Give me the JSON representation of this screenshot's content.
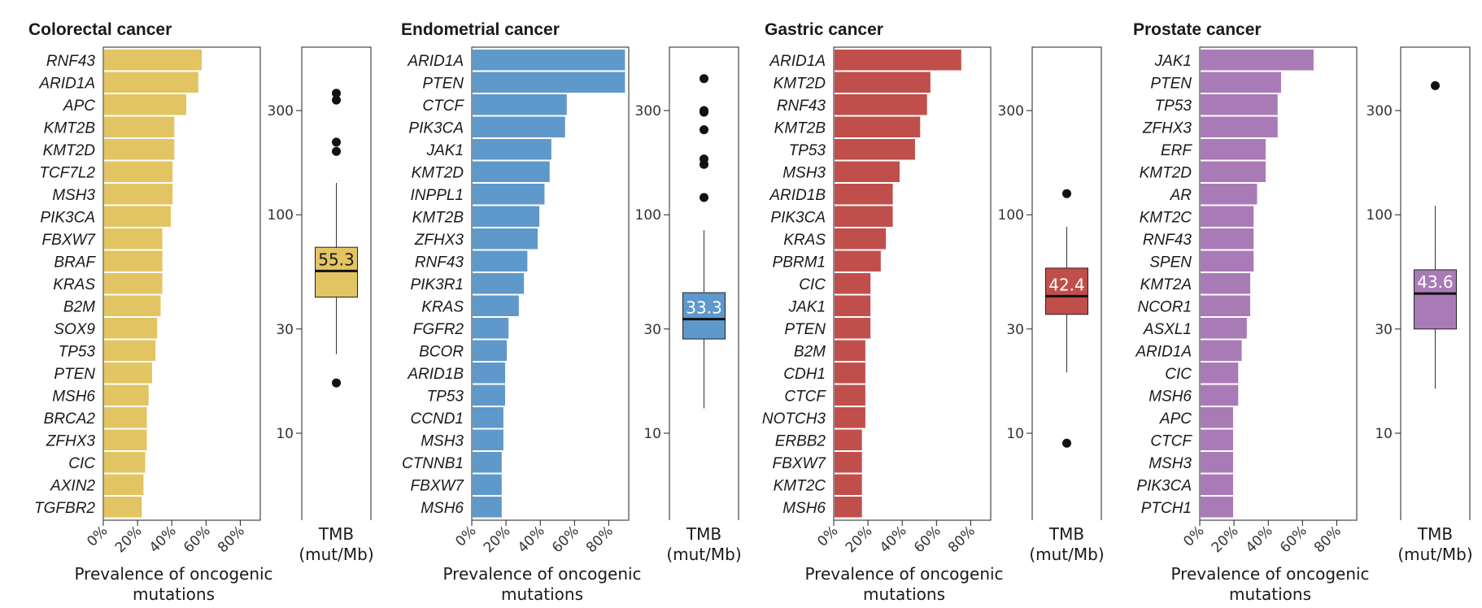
{
  "colors": {
    "Colorectal cancer": "#e3c462",
    "Endometrial cancer": "#5f98cb",
    "Gastric cancer": "#c04f4b",
    "Prostate cancer": "#a97bb6"
  },
  "chart_data": [
    {
      "type": "bar",
      "title": "Colorectal cancer",
      "xlabel": "Prevalence of oncogenic mutations",
      "xtick_labels": [
        "0%",
        "20%",
        "40%",
        "60%",
        "80%"
      ],
      "xlim": [
        0,
        95
      ],
      "categories": [
        "RNF43",
        "ARID1A",
        "APC",
        "KMT2B",
        "KMT2D",
        "TCF7L2",
        "MSH3",
        "PIK3CA",
        "FBXW7",
        "BRAF",
        "KRAS",
        "B2M",
        "SOX9",
        "TP53",
        "PTEN",
        "MSH6",
        "BRCA2",
        "ZFHX3",
        "CIC",
        "AXIN2",
        "TGFBR2"
      ],
      "values": [
        57,
        55,
        48,
        41,
        41,
        40,
        40,
        39,
        34,
        34,
        34,
        33,
        31,
        30,
        28,
        26,
        25,
        25,
        24,
        23,
        22
      ]
    },
    {
      "type": "box",
      "xlabel": "TMB\n(mut/Mb)",
      "ytick_labels": [
        "10",
        "30",
        "100",
        "300"
      ],
      "yscale": "log",
      "median": 55.3,
      "median_label": "55.3",
      "q1": 42,
      "q3": 71,
      "whisker_low": 23,
      "whisker_high": 140,
      "outliers": [
        360,
        335,
        215,
        195,
        17
      ]
    },
    {
      "type": "bar",
      "title": "Endometrial cancer",
      "xlabel": "Prevalence of oncogenic mutations",
      "xtick_labels": [
        "0%",
        "20%",
        "40%",
        "60%",
        "80%"
      ],
      "xlim": [
        0,
        95
      ],
      "categories": [
        "ARID1A",
        "PTEN",
        "CTCF",
        "PIK3CA",
        "JAK1",
        "KMT2D",
        "INPPL1",
        "KMT2B",
        "ZFHX3",
        "RNF43",
        "PIK3R1",
        "KRAS",
        "FGFR2",
        "BCOR",
        "ARID1B",
        "TP53",
        "CCND1",
        "MSH3",
        "CTNNB1",
        "FBXW7",
        "MSH6"
      ],
      "values": [
        89,
        89,
        55,
        54,
        46,
        45,
        42,
        39,
        38,
        32,
        30,
        27,
        21,
        20,
        19,
        19,
        18,
        18,
        17,
        17,
        17
      ]
    },
    {
      "type": "box",
      "xlabel": "TMB\n(mut/Mb)",
      "ytick_labels": [
        "10",
        "30",
        "100",
        "300"
      ],
      "yscale": "log",
      "median": 33.3,
      "median_label": "33.3",
      "q1": 27,
      "q3": 44,
      "whisker_low": 13,
      "whisker_high": 85,
      "outliers": [
        420,
        300,
        295,
        245,
        180,
        170,
        120
      ]
    },
    {
      "type": "bar",
      "title": "Gastric cancer",
      "xlabel": "Prevalence of oncogenic mutations",
      "xtick_labels": [
        "0%",
        "20%",
        "40%",
        "60%",
        "80%"
      ],
      "xlim": [
        0,
        95
      ],
      "categories": [
        "ARID1A",
        "KMT2D",
        "RNF43",
        "KMT2B",
        "TP53",
        "MSH3",
        "ARID1B",
        "PIK3CA",
        "KRAS",
        "PBRM1",
        "CIC",
        "JAK1",
        "PTEN",
        "B2M",
        "CDH1",
        "CTCF",
        "NOTCH3",
        "ERBB2",
        "FBXW7",
        "KMT2C",
        "MSH6"
      ],
      "values": [
        74,
        56,
        54,
        50,
        47,
        38,
        34,
        34,
        30,
        27,
        21,
        21,
        21,
        18,
        18,
        18,
        18,
        16,
        16,
        16,
        16
      ]
    },
    {
      "type": "box",
      "xlabel": "TMB\n(mut/Mb)",
      "ytick_labels": [
        "10",
        "30",
        "100",
        "300"
      ],
      "yscale": "log",
      "median": 42.4,
      "median_label": "42.4",
      "q1": 35,
      "q3": 57,
      "whisker_low": 19,
      "whisker_high": 88,
      "outliers": [
        125,
        9
      ]
    },
    {
      "type": "bar",
      "title": "Prostate cancer",
      "xlabel": "Prevalence of oncogenic mutations",
      "xtick_labels": [
        "0%",
        "20%",
        "40%",
        "60%",
        "80%"
      ],
      "xlim": [
        0,
        95
      ],
      "categories": [
        "JAK1",
        "PTEN",
        "TP53",
        "ZFHX3",
        "ERF",
        "KMT2D",
        "AR",
        "KMT2C",
        "RNF43",
        "SPEN",
        "KMT2A",
        "NCOR1",
        "ASXL1",
        "ARID1A",
        "CIC",
        "MSH6",
        "APC",
        "CTCF",
        "MSH3",
        "PIK3CA",
        "PTCH1"
      ],
      "values": [
        66,
        47,
        45,
        45,
        38,
        38,
        33,
        31,
        31,
        31,
        29,
        29,
        27,
        24,
        22,
        22,
        19,
        19,
        19,
        19,
        19
      ]
    },
    {
      "type": "box",
      "xlabel": "TMB\n(mut/Mb)",
      "ytick_labels": [
        "10",
        "30",
        "100",
        "300"
      ],
      "yscale": "log",
      "median": 43.6,
      "median_label": "43.6",
      "q1": 30,
      "q3": 56,
      "whisker_low": 16,
      "whisker_high": 110,
      "outliers": [
        390
      ]
    }
  ]
}
